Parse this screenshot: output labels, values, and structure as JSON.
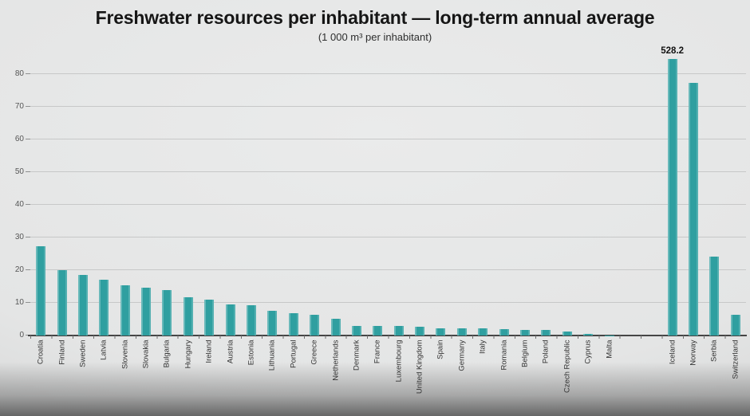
{
  "header": {
    "title": "Freshwater resources per inhabitant — long-term annual average",
    "subtitle": "(1 000 m³ per inhabitant)"
  },
  "chart_data": {
    "type": "bar",
    "title": "Freshwater resources per inhabitant — long-term annual average",
    "unit_label": "(1 000 m³ per inhabitant)",
    "categories": [
      "Croatia",
      "Finland",
      "Sweden",
      "Latvia",
      "Slovenia",
      "Slovakia",
      "Bulgaria",
      "Hungary",
      "Ireland",
      "Austria",
      "Estonia",
      "Lithuania",
      "Portugal",
      "Greece",
      "Netherlands",
      "Denmark",
      "France",
      "Luxembourg",
      "United Kingdom",
      "Spain",
      "Germany",
      "Italy",
      "Romania",
      "Belgium",
      "Poland",
      "Czech Republic",
      "Cyprus",
      "Malta",
      "Iceland",
      "Norway",
      "Serbia",
      "Switzerland"
    ],
    "values": [
      27.2,
      20.0,
      18.6,
      17.1,
      15.3,
      14.6,
      14.0,
      11.6,
      10.9,
      9.4,
      9.2,
      7.5,
      6.9,
      6.4,
      5.2,
      3.0,
      3.0,
      2.9,
      2.7,
      2.2,
      2.1,
      2.1,
      2.0,
      1.8,
      1.7,
      1.3,
      0.4,
      0.1,
      528.2,
      77.4,
      24.2,
      6.4
    ],
    "annotations": [
      {
        "category": "Iceland",
        "text": "528.2"
      }
    ],
    "yticks": [
      0,
      10,
      20,
      30,
      40,
      50,
      60,
      70,
      80
    ],
    "ylim": [
      0,
      82
    ],
    "grid": true,
    "legend": false,
    "bar_color": "#2f9fa0",
    "gridline_color": "#c7c8c8",
    "axis_color": "#454545",
    "gap_after_category": "Malta",
    "gap_slots": 2,
    "clip_display_at": 84.6
  }
}
